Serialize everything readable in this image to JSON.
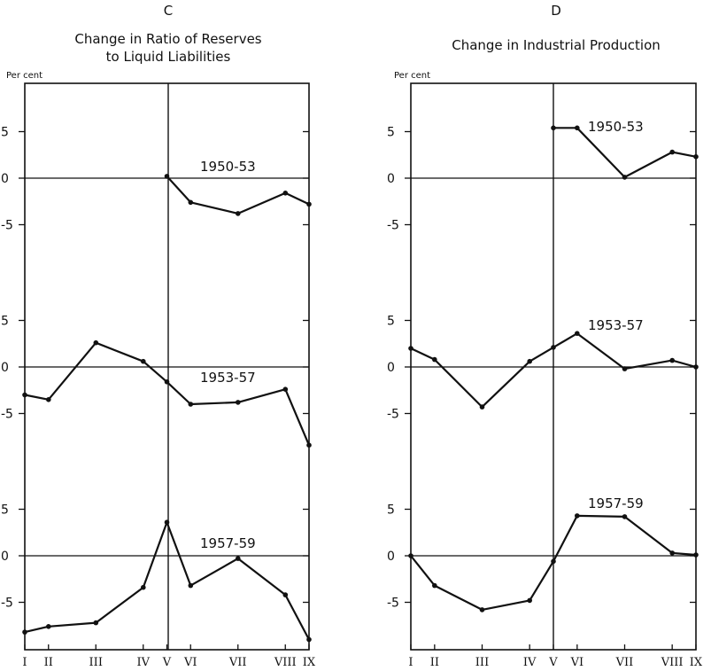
{
  "chart_data": [
    {
      "type": "line",
      "letter": "C",
      "title_line1": "Change in Ratio of Reserves",
      "title_line2": "to Liquid Liabilities",
      "unit_label": "Per cent",
      "x_tick_labels": [
        "I",
        "II",
        "III",
        "IV",
        "V",
        "VI",
        "VII",
        "VIII",
        "IX"
      ],
      "x_positions": [
        1,
        2,
        4,
        6,
        7,
        8,
        10,
        12,
        13
      ],
      "y_tick_labels": [
        "5",
        "0",
        "-5"
      ],
      "ylim_per_panel": [
        -9.5,
        10
      ],
      "panels": [
        {
          "name": "1950-53",
          "points": [
            [
              7,
              0.2
            ],
            [
              8,
              -2.6
            ],
            [
              10,
              -3.8
            ],
            [
              12,
              -1.6
            ],
            [
              13,
              -2.8
            ]
          ]
        },
        {
          "name": "1953-57",
          "points": [
            [
              1,
              -3.0
            ],
            [
              2,
              -3.5
            ],
            [
              4,
              2.6
            ],
            [
              6,
              0.6
            ],
            [
              7,
              -1.6
            ],
            [
              8,
              -4.0
            ],
            [
              10,
              -3.8
            ],
            [
              12,
              -2.4
            ],
            [
              13,
              -8.4
            ]
          ]
        },
        {
          "name": "1957-59",
          "points": [
            [
              1,
              -8.2
            ],
            [
              2,
              -7.6
            ],
            [
              4,
              -7.2
            ],
            [
              6,
              -3.4
            ],
            [
              7,
              3.6
            ],
            [
              8,
              -3.2
            ],
            [
              10,
              -0.3
            ],
            [
              12,
              -4.2
            ],
            [
              13,
              -9.0
            ]
          ]
        }
      ]
    },
    {
      "type": "line",
      "letter": "D",
      "title_line1": "Change in Industrial Production",
      "title_line2": "",
      "unit_label": "Per cent",
      "x_tick_labels": [
        "I",
        "II",
        "III",
        "IV",
        "V",
        "VI",
        "VII",
        "VIII",
        "IX"
      ],
      "x_positions": [
        1,
        2,
        4,
        6,
        7,
        8,
        10,
        12,
        13
      ],
      "y_tick_labels": [
        "5",
        "0",
        "-5"
      ],
      "ylim_per_panel": [
        -9.5,
        10
      ],
      "panels": [
        {
          "name": "1950-53",
          "points": [
            [
              7,
              5.4
            ],
            [
              8,
              5.4
            ],
            [
              10,
              0.1
            ],
            [
              12,
              2.8
            ],
            [
              13,
              2.3
            ]
          ]
        },
        {
          "name": "1953-57",
          "points": [
            [
              1,
              2.0
            ],
            [
              2,
              0.8
            ],
            [
              4,
              -4.3
            ],
            [
              6,
              0.6
            ],
            [
              7,
              2.1
            ],
            [
              8,
              3.6
            ],
            [
              10,
              -0.2
            ],
            [
              12,
              0.7
            ],
            [
              13,
              0.0
            ]
          ]
        },
        {
          "name": "1957-59",
          "points": [
            [
              1,
              0.0
            ],
            [
              2,
              -3.2
            ],
            [
              4,
              -5.8
            ],
            [
              6,
              -4.8
            ],
            [
              7,
              -0.6
            ],
            [
              8,
              4.3
            ],
            [
              10,
              4.2
            ],
            [
              12,
              0.3
            ],
            [
              13,
              0.1
            ]
          ]
        }
      ]
    }
  ]
}
